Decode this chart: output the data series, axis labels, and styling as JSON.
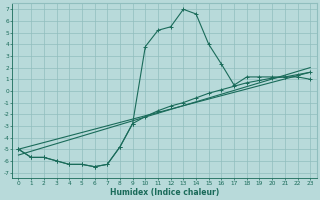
{
  "xlabel": "Humidex (Indice chaleur)",
  "xlim": [
    -0.5,
    23.5
  ],
  "ylim": [
    -7.5,
    7.5
  ],
  "xticks": [
    0,
    1,
    2,
    3,
    4,
    5,
    6,
    7,
    8,
    9,
    10,
    11,
    12,
    13,
    14,
    15,
    16,
    17,
    18,
    19,
    20,
    21,
    22,
    23
  ],
  "yticks": [
    7,
    6,
    5,
    4,
    3,
    2,
    1,
    0,
    -1,
    -2,
    -3,
    -4,
    -5,
    -6,
    -7
  ],
  "color": "#1a6b5a",
  "background": "#b8dada",
  "grid_color": "#90bebe",
  "main_x": [
    0,
    1,
    2,
    3,
    4,
    5,
    6,
    7,
    8,
    9,
    10,
    11,
    12,
    13,
    14,
    15,
    16,
    17,
    18,
    19,
    20,
    21,
    22,
    23
  ],
  "main_y": [
    -5.0,
    -5.7,
    -5.7,
    -6.0,
    -6.3,
    -6.3,
    -6.5,
    -6.3,
    -4.8,
    -2.8,
    3.8,
    5.2,
    5.5,
    7.0,
    6.6,
    4.0,
    2.3,
    0.5,
    1.2,
    1.2,
    1.2,
    1.2,
    1.2,
    1.0
  ],
  "curve2_x": [
    0,
    1,
    2,
    3,
    4,
    5,
    6,
    7,
    8,
    9,
    10,
    11,
    12,
    13,
    14,
    15,
    16,
    17,
    18,
    19,
    20,
    21,
    22,
    23
  ],
  "curve2_y": [
    -5.0,
    -5.7,
    -5.7,
    -6.0,
    -6.3,
    -6.3,
    -6.5,
    -6.3,
    -4.8,
    -2.8,
    -2.2,
    -1.7,
    -1.3,
    -1.0,
    -0.6,
    -0.2,
    0.1,
    0.4,
    0.7,
    0.9,
    1.1,
    1.2,
    1.4,
    1.6
  ],
  "line3_x": [
    0,
    23
  ],
  "line3_y": [
    -5.0,
    1.6
  ],
  "line4_x": [
    0,
    23
  ],
  "line4_y": [
    -5.5,
    2.0
  ]
}
